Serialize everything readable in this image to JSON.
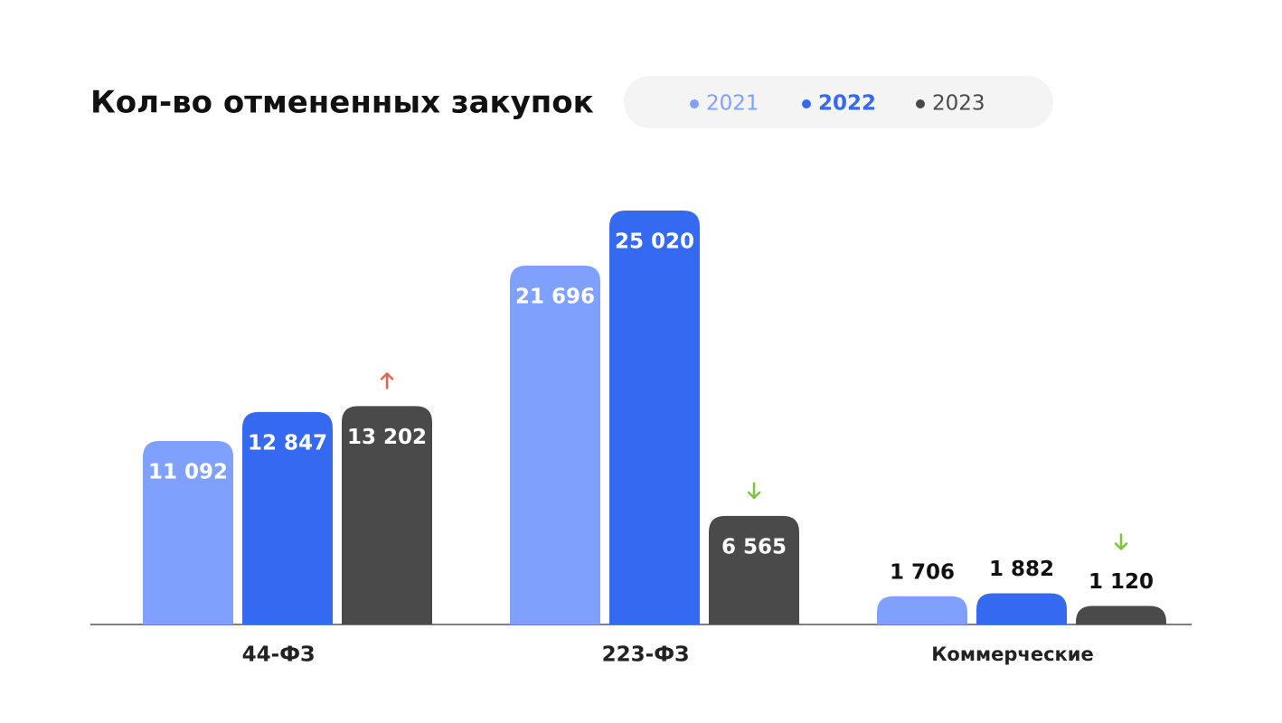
{
  "chart_data": {
    "type": "bar",
    "title": "Кол-во отмененных закупок",
    "categories": [
      "44-ФЗ",
      "223-ФЗ",
      "Коммерческие"
    ],
    "series": [
      {
        "name": "2021",
        "color": "#80a0fe",
        "values": [
          11092,
          21696,
          1706
        ],
        "value_labels": [
          "11 092",
          "21 696",
          "1 706"
        ]
      },
      {
        "name": "2022",
        "color": "#356af0",
        "values": [
          12847,
          25020,
          1882
        ],
        "value_labels": [
          "12 847",
          "25 020",
          "1 882"
        ]
      },
      {
        "name": "2023",
        "color": "#4a4a4a",
        "values": [
          13202,
          6565,
          1120
        ],
        "value_labels": [
          "13 202",
          "6 565",
          "1 120"
        ]
      }
    ]
  }
}
